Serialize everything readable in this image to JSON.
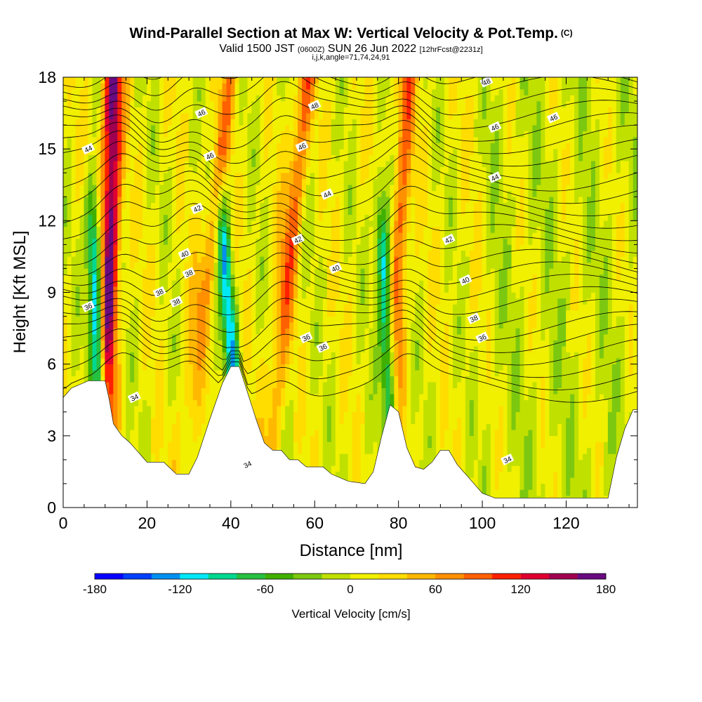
{
  "chart_data": {
    "type": "contour",
    "title": "Wind-Parallel Section at Max W: Vertical Velocity & Pot.Temp.",
    "title_suffix": "(C)",
    "subtitle_parts": [
      "Valid 1500 JST",
      "(0600Z)",
      "SUN 26 Jun 2022",
      "[12hrFcst@2231z]"
    ],
    "subtitle2": "i,j,k,angle=71,74,24,91",
    "xlabel": "Distance [nm]",
    "ylabel": "Height [Kft MSL]",
    "xlim": [
      0,
      137
    ],
    "ylim": [
      0,
      18
    ],
    "x_ticks": [
      "0",
      "20",
      "40",
      "60",
      "80",
      "100",
      "120"
    ],
    "x_tick_values": [
      0,
      20,
      40,
      60,
      80,
      100,
      120
    ],
    "y_ticks": [
      "0",
      "3",
      "6",
      "9",
      "12",
      "15",
      "18"
    ],
    "y_tick_values": [
      0,
      3,
      6,
      9,
      12,
      15,
      18
    ],
    "grid": false,
    "colorbar": {
      "label": "Vertical Velocity [cm/s]",
      "min": -180,
      "max": 180,
      "step": 20,
      "tick_labels": [
        "-180",
        "-120",
        "-60",
        "0",
        "60",
        "120",
        "180"
      ],
      "tick_values": [
        -180,
        -120,
        -60,
        0,
        60,
        120,
        180
      ],
      "colors": [
        "#0a00ff",
        "#0040ff",
        "#0090f0",
        "#00e8f8",
        "#00d890",
        "#26c040",
        "#40b000",
        "#7cc810",
        "#c0e000",
        "#f0f000",
        "#ffdd00",
        "#ffb800",
        "#ff9000",
        "#ff6000",
        "#ff2000",
        "#e00030",
        "#a00050",
        "#6a0a80"
      ]
    },
    "theta_contour_labels": [
      "34",
      "34",
      "34",
      "36",
      "36",
      "36",
      "36",
      "38",
      "38",
      "38",
      "38",
      "40",
      "40",
      "40",
      "42",
      "42",
      "42",
      "44",
      "44",
      "44",
      "46",
      "46",
      "46",
      "46",
      "46",
      "48",
      "48",
      "48"
    ],
    "updrafts": [
      {
        "x_base": 10,
        "x_top": 12,
        "peak_cm_s": 170
      },
      {
        "x_base": 27,
        "x_top": 40,
        "peak_cm_s": 60
      },
      {
        "x_base": 48,
        "x_top": 58,
        "peak_cm_s": 80
      },
      {
        "x_base": 78,
        "x_top": 82,
        "peak_cm_s": 80
      }
    ],
    "downdrafts": [
      {
        "x_base": 10,
        "x_top": 7,
        "min_cm_s": -140
      },
      {
        "x_base": 43,
        "x_top": 38,
        "min_cm_s": -120
      },
      {
        "x_base": 79,
        "x_top": 76,
        "min_cm_s": -120
      }
    ],
    "terrain_profile_kft": [
      [
        0,
        4.6
      ],
      [
        2,
        5.0
      ],
      [
        6,
        5.3
      ],
      [
        10,
        5.3
      ],
      [
        11,
        4.5
      ],
      [
        12,
        3.5
      ],
      [
        14,
        3.0
      ],
      [
        16,
        2.7
      ],
      [
        18,
        2.3
      ],
      [
        20,
        1.9
      ],
      [
        22,
        1.9
      ],
      [
        24,
        1.9
      ],
      [
        27,
        1.4
      ],
      [
        30,
        1.4
      ],
      [
        32,
        2.1
      ],
      [
        35,
        3.7
      ],
      [
        38,
        5.2
      ],
      [
        40,
        5.9
      ],
      [
        42,
        5.9
      ],
      [
        44,
        4.8
      ],
      [
        46,
        3.7
      ],
      [
        48,
        2.7
      ],
      [
        50,
        2.4
      ],
      [
        52,
        2.4
      ],
      [
        54,
        2.0
      ],
      [
        56,
        2.0
      ],
      [
        58,
        1.7
      ],
      [
        60,
        1.7
      ],
      [
        62,
        1.7
      ],
      [
        64,
        1.4
      ],
      [
        68,
        1.1
      ],
      [
        72,
        1.0
      ],
      [
        74,
        1.5
      ],
      [
        76,
        3.0
      ],
      [
        78,
        4.3
      ],
      [
        80,
        4.0
      ],
      [
        82,
        2.5
      ],
      [
        84,
        1.7
      ],
      [
        86,
        1.6
      ],
      [
        88,
        1.9
      ],
      [
        90,
        2.4
      ],
      [
        92,
        2.4
      ],
      [
        94,
        1.8
      ],
      [
        96,
        1.4
      ],
      [
        98,
        1.0
      ],
      [
        100,
        0.6
      ],
      [
        103,
        0.4
      ],
      [
        110,
        0.4
      ],
      [
        125,
        0.4
      ],
      [
        130,
        0.4
      ],
      [
        132,
        2.1
      ],
      [
        134,
        3.3
      ],
      [
        136,
        4.1
      ]
    ]
  }
}
